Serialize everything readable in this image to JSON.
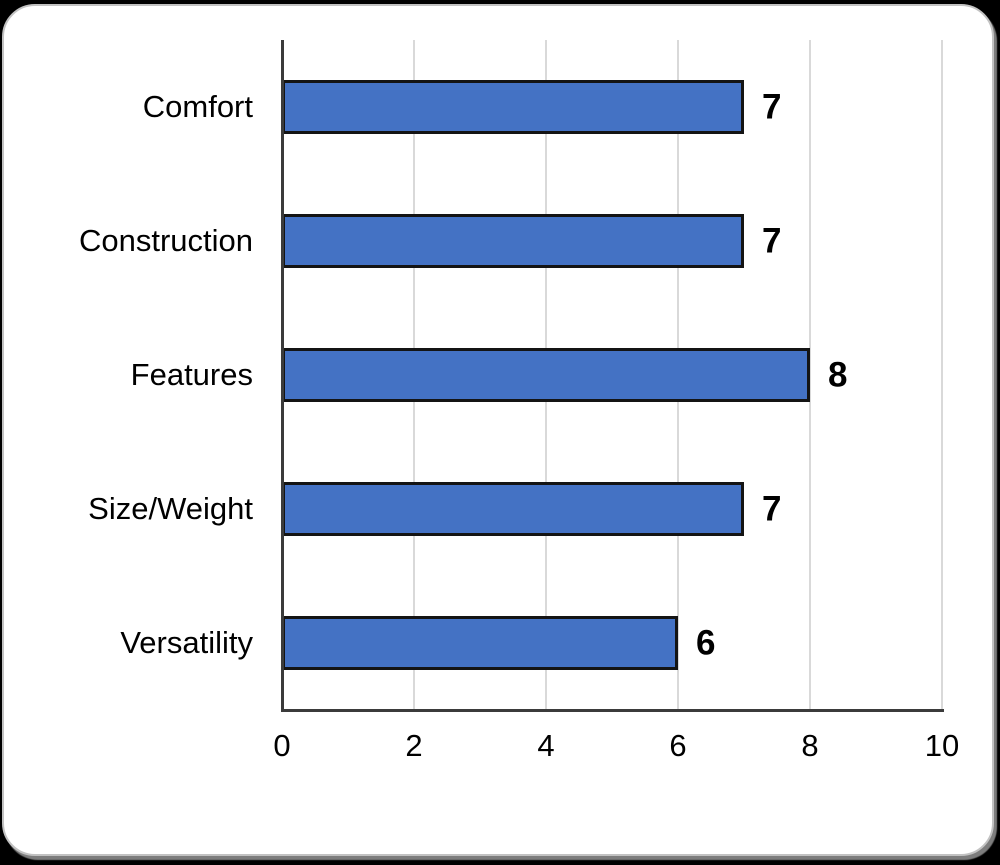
{
  "page": {
    "background_color": "#000000",
    "card_color": "#ffffff"
  },
  "chart_data": {
    "type": "bar",
    "orientation": "horizontal",
    "title": "",
    "xlabel": "",
    "ylabel": "",
    "categories": [
      "Comfort",
      "Construction",
      "Features",
      "Size/Weight",
      "Versatility"
    ],
    "values": [
      7,
      7,
      8,
      7,
      6
    ],
    "data_labels": [
      "7",
      "7",
      "8",
      "7",
      "6"
    ],
    "xlim": [
      0,
      10
    ],
    "xticks": [
      "0",
      "2",
      "4",
      "6",
      "8",
      "10"
    ],
    "xtick_values": [
      0,
      2,
      4,
      6,
      8,
      10
    ],
    "grid": true,
    "legend": false,
    "colors": {
      "bar_fill": "#4472c4",
      "bar_border": "#141414",
      "gridline": "#d9d9d9",
      "axis_line": "#3b3b3b",
      "label_text": "#000000"
    }
  }
}
